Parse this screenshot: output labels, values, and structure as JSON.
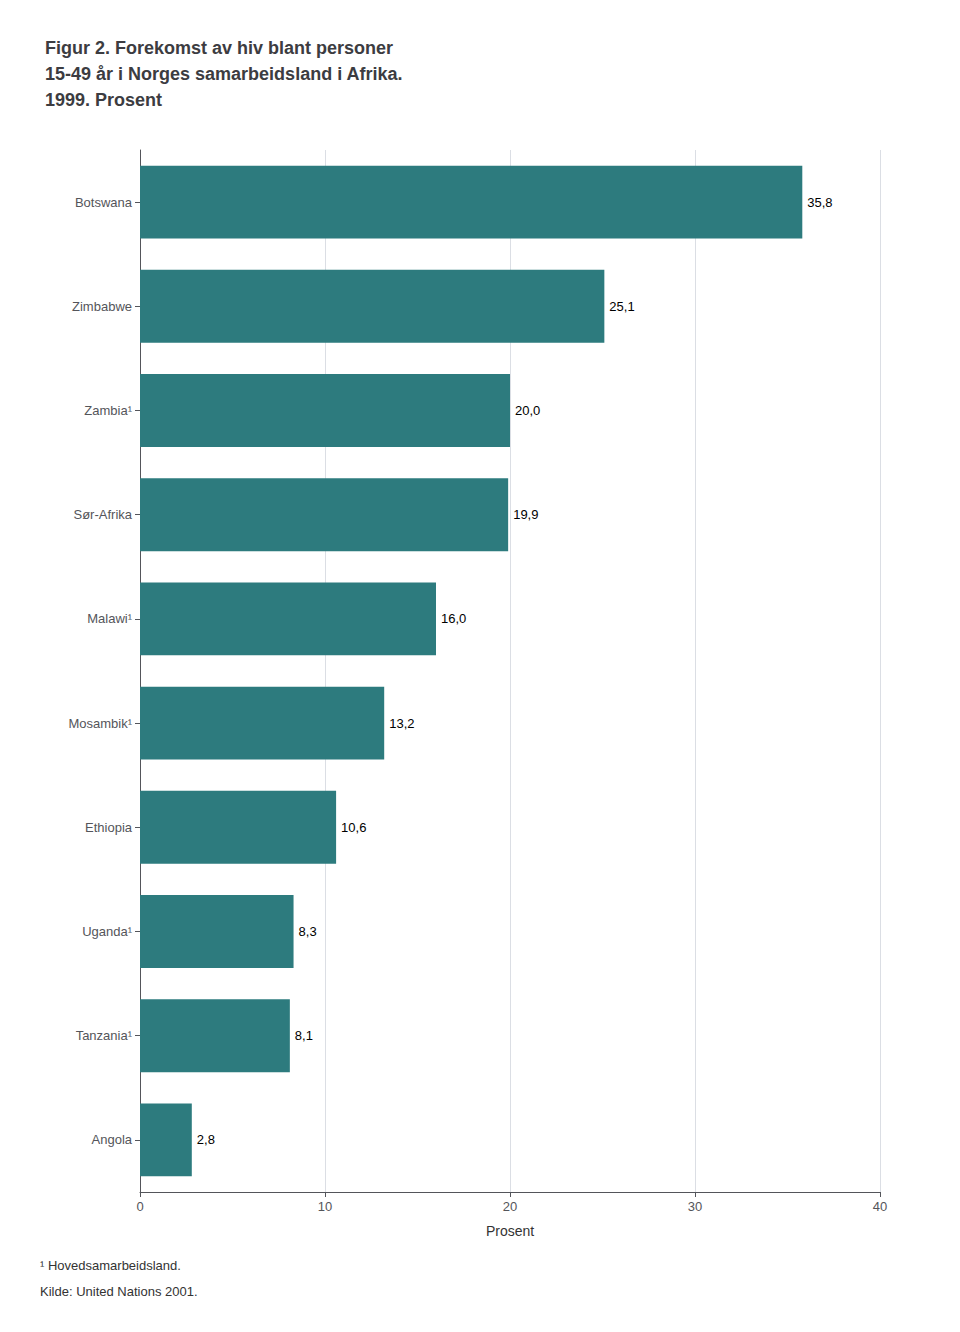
{
  "chart_data": {
    "type": "bar",
    "title": "Figur 2. Forekomst av hiv blant personer\n15-49 år i Norges samarbeidsland i Afrika.\n1999. Prosent",
    "orientation": "horizontal",
    "categories": [
      "Botswana",
      "Zimbabwe",
      "Zambia¹",
      "Sør-Afrika",
      "Malawi¹",
      "Mosambik¹",
      "Ethiopia",
      "Uganda¹",
      "Tanzania¹",
      "Angola"
    ],
    "values": [
      35.8,
      25.1,
      20.0,
      19.9,
      16.0,
      13.2,
      10.6,
      8.3,
      8.1,
      2.8
    ],
    "value_labels": [
      "35,8",
      "25,1",
      "20,0",
      "19,9",
      "16,0",
      "13,2",
      "10,6",
      "8,3",
      "8,1",
      "2,8"
    ],
    "data_labels": true,
    "color": "#2d7b7e",
    "xlabel": "Prosent",
    "xlim": [
      0,
      40
    ],
    "xticks": [
      0,
      10,
      20,
      30,
      40
    ],
    "grid": true,
    "annotations": [
      "¹ Hovedsamarbeidsland.",
      "Kilde: United Nations 2001."
    ]
  }
}
